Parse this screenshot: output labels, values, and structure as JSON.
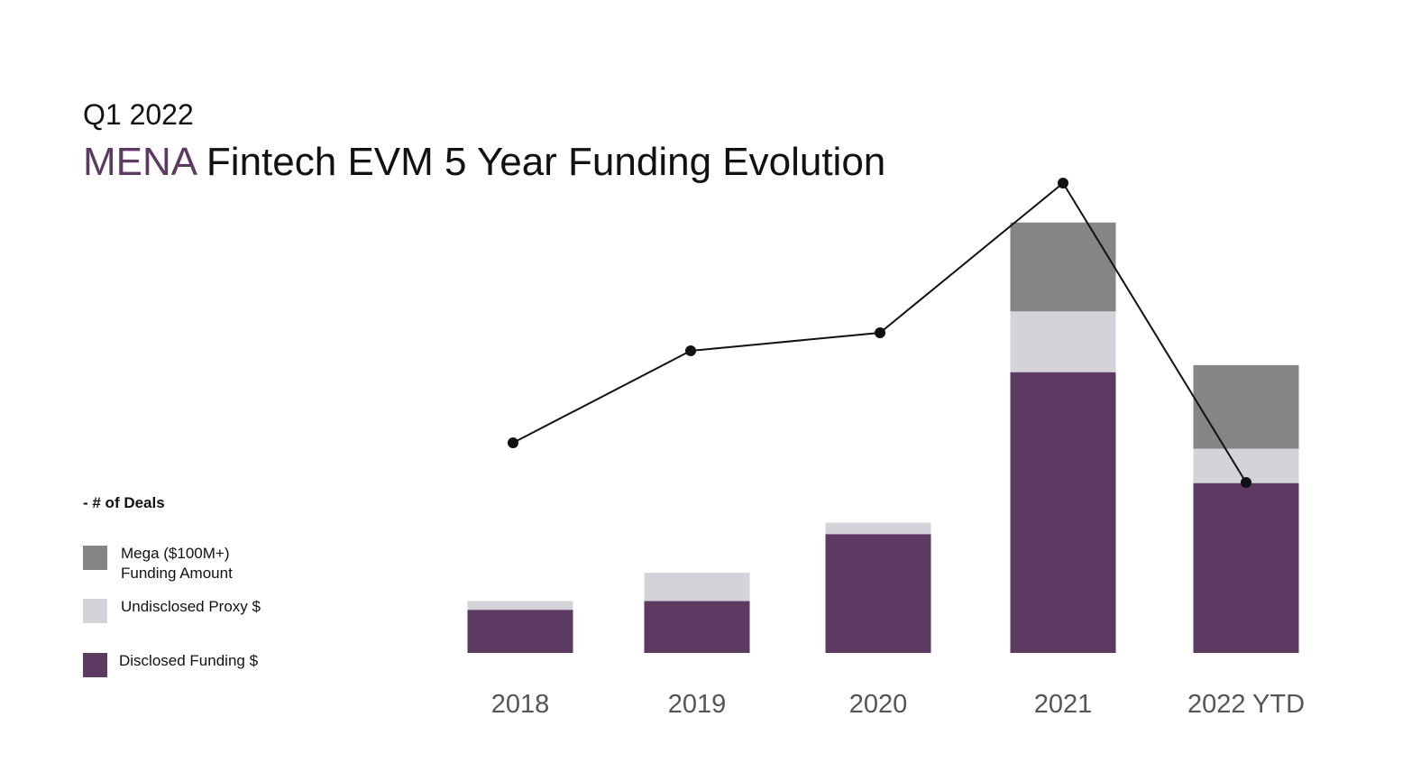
{
  "header": {
    "subtitle": "Q1 2022",
    "title_accent": "MENA",
    "title_rest": " Fintech EVM 5 Year Funding Evolution"
  },
  "legend": {
    "heading": "- # of Deals",
    "items": [
      {
        "label": "Mega ($100M+)\nFunding Amount",
        "color": "#858585"
      },
      {
        "label": "Undisclosed Proxy $",
        "color": "#d4d3d9"
      },
      {
        "label": "Disclosed Funding $",
        "color": "#5c3a62"
      }
    ]
  },
  "chart_data": {
    "type": "bar",
    "stacked": true,
    "categories": [
      "2018",
      "2019",
      "2020",
      "2021",
      "2022 YTD"
    ],
    "series": [
      {
        "name": "Disclosed Funding $",
        "color": "#5c3a62",
        "values": [
          49,
          59,
          135,
          319,
          193
        ]
      },
      {
        "name": "Undisclosed Proxy $",
        "color": "#d4d3d9",
        "values": [
          10,
          32,
          13,
          69,
          39
        ]
      },
      {
        "name": "Mega ($100M+) Funding Amount",
        "color": "#858585",
        "values": [
          0,
          0,
          0,
          101,
          95
        ]
      }
    ],
    "line_series": {
      "name": "# of Deals",
      "color": "#111111",
      "values": [
        233,
        335,
        355,
        521,
        189
      ]
    },
    "ylim": [
      0,
      500
    ],
    "line_ylim": [
      0,
      600
    ],
    "grid": false,
    "legend_position": "left"
  }
}
